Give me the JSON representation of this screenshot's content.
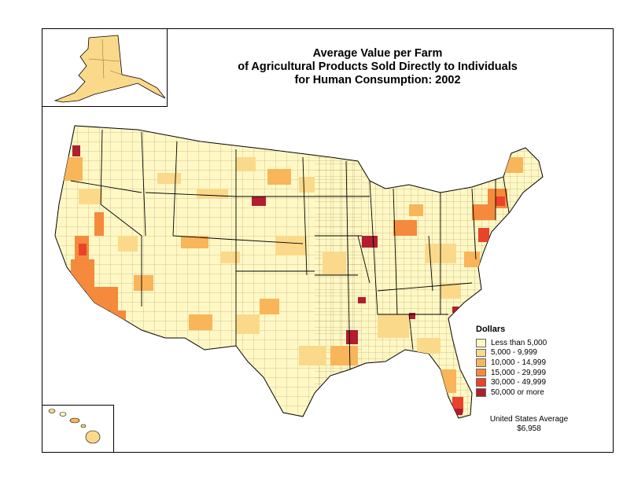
{
  "title": {
    "line1": "Average Value per Farm",
    "line2": "of Agricultural Products Sold Directly to Individuals",
    "line3": "for Human Consumption:  2002"
  },
  "legend": {
    "title": "Dollars",
    "classes": [
      {
        "label": "Less than 5,000",
        "color": "#fff8c4"
      },
      {
        "label": "5,000 - 9,999",
        "color": "#fbd98a"
      },
      {
        "label": "10,000 - 14,999",
        "color": "#f8b559"
      },
      {
        "label": "15,000 - 29,999",
        "color": "#f58a3c"
      },
      {
        "label": "30,000 - 49,999",
        "color": "#e9432a"
      },
      {
        "label": "50,000 or more",
        "color": "#b01e2f"
      }
    ]
  },
  "average": {
    "label": "United States Average",
    "value": "$6,958"
  }
}
